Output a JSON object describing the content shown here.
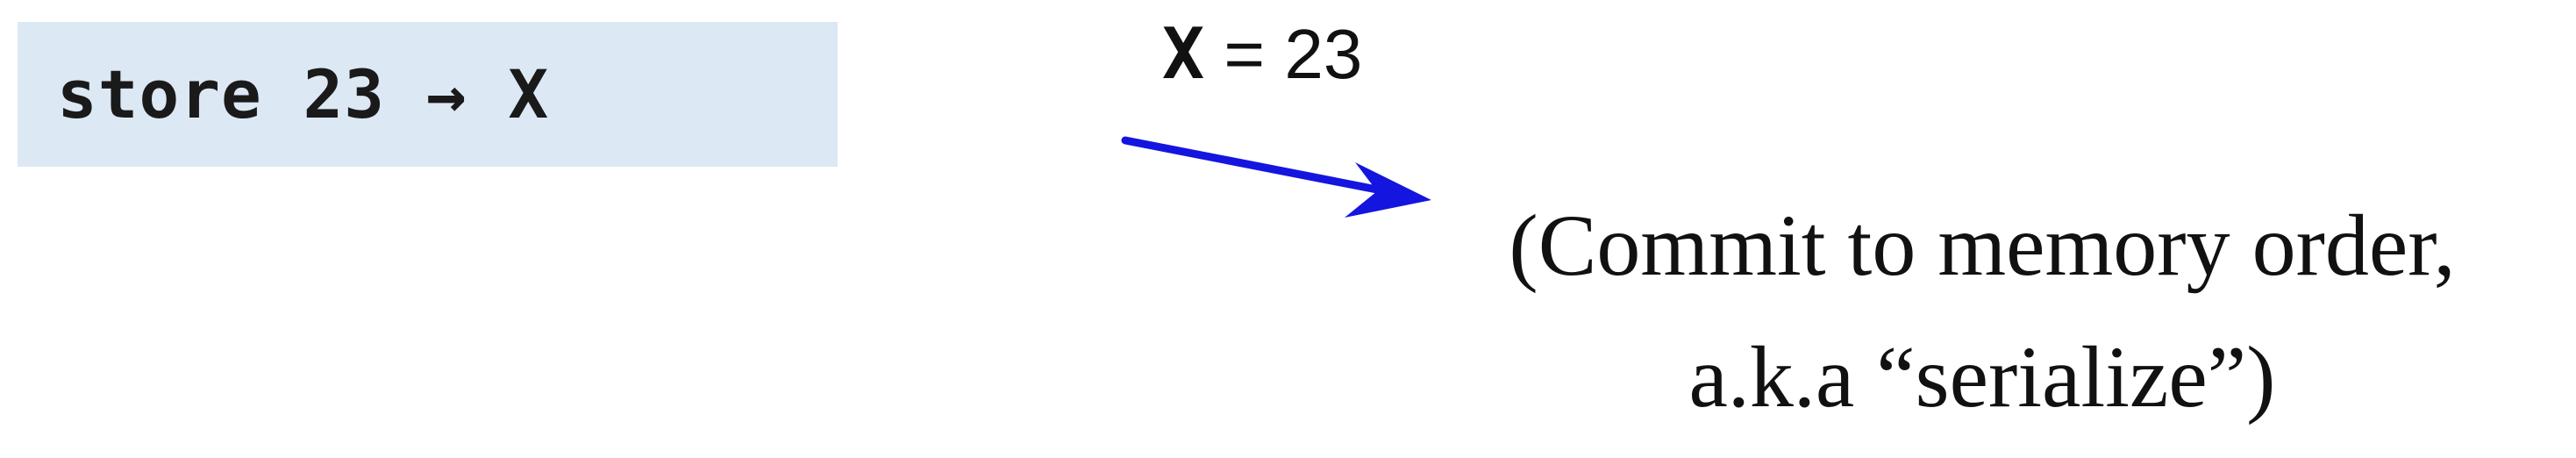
{
  "code_box": {
    "text": "store 23 → X"
  },
  "assignment": {
    "variable": "X",
    "rest": " = 23"
  },
  "arrow": {
    "color": "#1515e0"
  },
  "commit_note": {
    "line1": "(Commit to memory order,",
    "line2": "a.k.a “serialize”)"
  },
  "colors": {
    "code_box_background": "#dde8f5",
    "text": "#111111"
  }
}
